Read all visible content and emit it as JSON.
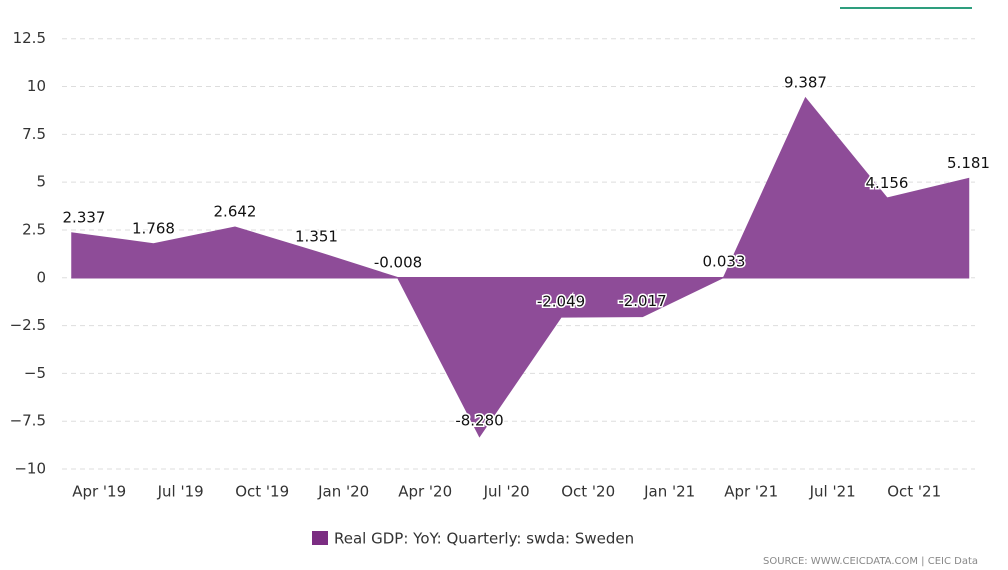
{
  "chart_data": {
    "type": "area",
    "series": [
      {
        "name": "Real GDP: YoY: Quarterly: swda: Sweden",
        "color": "#8e4c98",
        "legend_color": "#7b2d82",
        "values": [
          2.337,
          1.768,
          2.642,
          1.351,
          -0.008,
          -8.28,
          -2.049,
          -2.017,
          0.033,
          9.387,
          4.156,
          5.181
        ],
        "value_labels": [
          "2.337",
          "1.768",
          "2.642",
          "1.351",
          "-0.008",
          "-8.280",
          "-2.049",
          "-2.017",
          "0.033",
          "9.387",
          "4.156",
          "5.181"
        ]
      }
    ],
    "xticks": [
      "Apr '19",
      "Jul '19",
      "Oct '19",
      "Jan '20",
      "Apr '20",
      "Jul '20",
      "Oct '20",
      "Jan '21",
      "Apr '21",
      "Jul '21",
      "Oct '21"
    ],
    "ylim": [
      -10,
      14
    ],
    "yticks": [
      {
        "value": -10,
        "label": "−10"
      },
      {
        "value": -7.5,
        "label": "−7.5"
      },
      {
        "value": -5,
        "label": "−5"
      },
      {
        "value": -2.5,
        "label": "−2.5"
      },
      0,
      2.5,
      5,
      7.5,
      10,
      12.5
    ],
    "grid": true,
    "source": "SOURCE: WWW.CEICDATA.COM | CEIC Data"
  }
}
